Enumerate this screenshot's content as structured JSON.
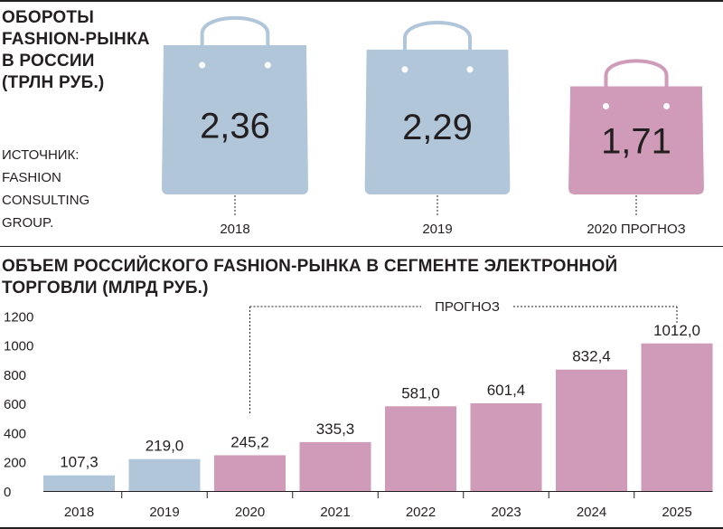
{
  "top_title_lines": [
    "ОБОРОТЫ",
    "FASHION-РЫНКА",
    "В РОССИИ",
    "(ТРЛН РУБ.)"
  ],
  "source_lines": [
    "ИСТОЧНИК:",
    "FASHION",
    "CONSULTING",
    "GROUP."
  ],
  "bottom_title_lines": [
    "ОБЪЕМ РОССИЙСКОГО FASHION-РЫНКА В СЕГМЕНТЕ ЭЛЕКТРОННОЙ",
    "ТОРГОВЛИ (МЛРД РУБ.)"
  ],
  "forecast_label": "ПРОГНОЗ",
  "colors": {
    "actual": "#b2c6da",
    "forecast": "#cf9bb8",
    "text": "#231f20"
  },
  "chart_data": [
    {
      "type": "bar",
      "title": "ОБОРОТЫ FASHION-РЫНКА В РОССИИ (ТРЛН РУБ.)",
      "categories": [
        "2018",
        "2019",
        "2020 ПРОГНОЗ"
      ],
      "values": [
        2.36,
        2.29,
        1.71
      ],
      "value_labels": [
        "2,36",
        "2,29",
        "1,71"
      ],
      "forecast": [
        false,
        false,
        true
      ],
      "style": "shopping-bag icons"
    },
    {
      "type": "bar",
      "title": "ОБЪЕМ РОССИЙСКОГО FASHION-РЫНКА В СЕГМЕНТЕ ЭЛЕКТРОННОЙ ТОРГОВЛИ (МЛРД РУБ.)",
      "categories": [
        "2018",
        "2019",
        "2020",
        "2021",
        "2022",
        "2023",
        "2024",
        "2025"
      ],
      "values": [
        107.3,
        219.0,
        245.2,
        335.3,
        581.0,
        601.4,
        832.4,
        1012.0
      ],
      "value_labels": [
        "107,3",
        "219,0",
        "245,2",
        "335,3",
        "581,0",
        "601,4",
        "832,4",
        "1012,0"
      ],
      "forecast": [
        false,
        false,
        true,
        true,
        true,
        true,
        true,
        true
      ],
      "yticks": [
        0,
        200,
        400,
        600,
        800,
        1000,
        1200
      ],
      "ylim": [
        0,
        1200
      ],
      "grid": false
    }
  ]
}
